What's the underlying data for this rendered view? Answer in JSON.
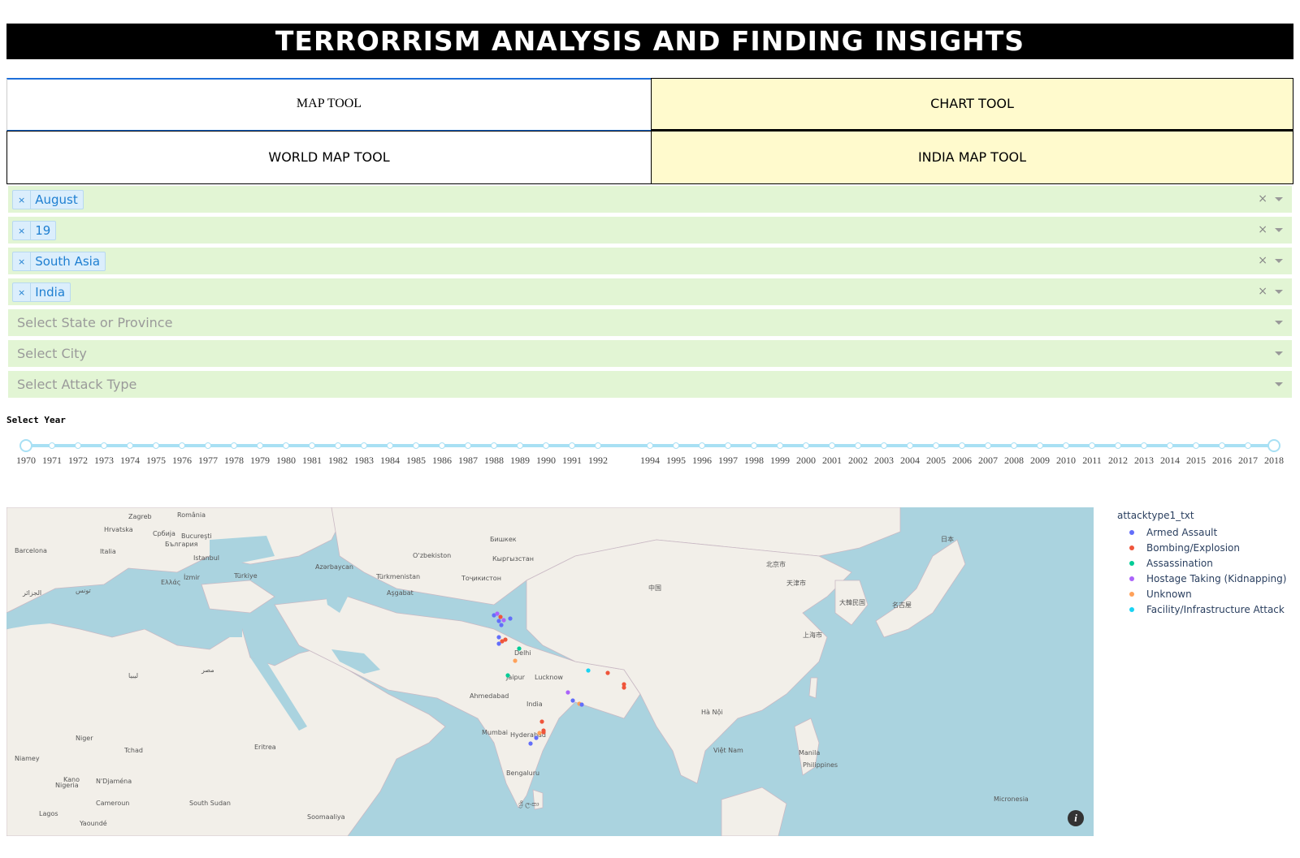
{
  "header": {
    "title": "TERRORRISM ANALYSIS AND FINDING INSIGHTS"
  },
  "tabs": {
    "main": [
      {
        "label": "MAP TOOL",
        "active": true
      },
      {
        "label": "CHART TOOL",
        "active": false
      }
    ],
    "sub": [
      {
        "label": "WORLD MAP TOOL",
        "active": false
      },
      {
        "label": "INDIA MAP TOOL",
        "active": true
      }
    ]
  },
  "filters": {
    "month": {
      "value": "August",
      "clear": "×"
    },
    "day": {
      "value": "19",
      "clear": "×"
    },
    "region": {
      "value": "South Asia",
      "clear": "×"
    },
    "country": {
      "value": "India",
      "clear": "×"
    },
    "state": {
      "placeholder": "Select State or Province"
    },
    "city": {
      "placeholder": "Select City"
    },
    "attack_type": {
      "placeholder": "Select Attack Type"
    }
  },
  "year_slider": {
    "label": "Select Year",
    "min": 1970,
    "max": 2018,
    "selected_range": [
      1970,
      2018
    ],
    "marks": [
      "1970",
      "1971",
      "1972",
      "1973",
      "1974",
      "1975",
      "1976",
      "1977",
      "1978",
      "1979",
      "1980",
      "1981",
      "1982",
      "1983",
      "1984",
      "1985",
      "1986",
      "1987",
      "1988",
      "1989",
      "1990",
      "1991",
      "1992",
      "1994",
      "1995",
      "1996",
      "1997",
      "1998",
      "1999",
      "2000",
      "2001",
      "2002",
      "2003",
      "2004",
      "2005",
      "2006",
      "2007",
      "2008",
      "2009",
      "2010",
      "2011",
      "2012",
      "2013",
      "2014",
      "2015",
      "2016",
      "2017",
      "2018"
    ]
  },
  "map": {
    "info_icon": "i",
    "place_labels": [
      "Zagreb",
      "România",
      "Bucureşti",
      "Hrvatska",
      "Србија",
      "България",
      "Barcelona",
      "Italia",
      "Istanbul",
      "Türkiye",
      "İzmir",
      "Ελλάς",
      "Azərbaycan",
      "Türkmenistan",
      "Aşgabat",
      "Oʻzbekiston",
      "Бишкек",
      "Кыргызстан",
      "Тоҷикистон",
      "الجزائر",
      "تونس",
      "ليبيا",
      "مصر",
      "Delhi",
      "Jaipur",
      "Lucknow",
      "Ahmedabad",
      "India",
      "Mumbai",
      "Hyderabad",
      "Bengaluru",
      "中国",
      "北京市",
      "天津市",
      "上海市",
      "Hà Nội",
      "Việt Nam",
      "Manila",
      "Philippines",
      "Micronesia",
      "Niger",
      "Tchad",
      "Nigeria",
      "Kano",
      "Niamey",
      "N'Djaména",
      "Lagos",
      "Yaoundé",
      "Cameroun",
      "Soomaaliya",
      "South Sudan",
      "Eritrea",
      "日本",
      "大韓民国",
      "名古屋",
      "ශ්‍රී ලංකා"
    ],
    "legend_title": "attacktype1_txt",
    "legend": [
      {
        "name": "Armed Assault",
        "color": "#636efa"
      },
      {
        "name": "Bombing/Explosion",
        "color": "#ef553b"
      },
      {
        "name": "Assassination",
        "color": "#00cc96"
      },
      {
        "name": "Hostage Taking (Kidnapping)",
        "color": "#ab63fa"
      },
      {
        "name": "Unknown",
        "color": "#ffa15a"
      },
      {
        "name": "Facility/Infrastructure Attack",
        "color": "#19d3f3"
      }
    ]
  }
}
